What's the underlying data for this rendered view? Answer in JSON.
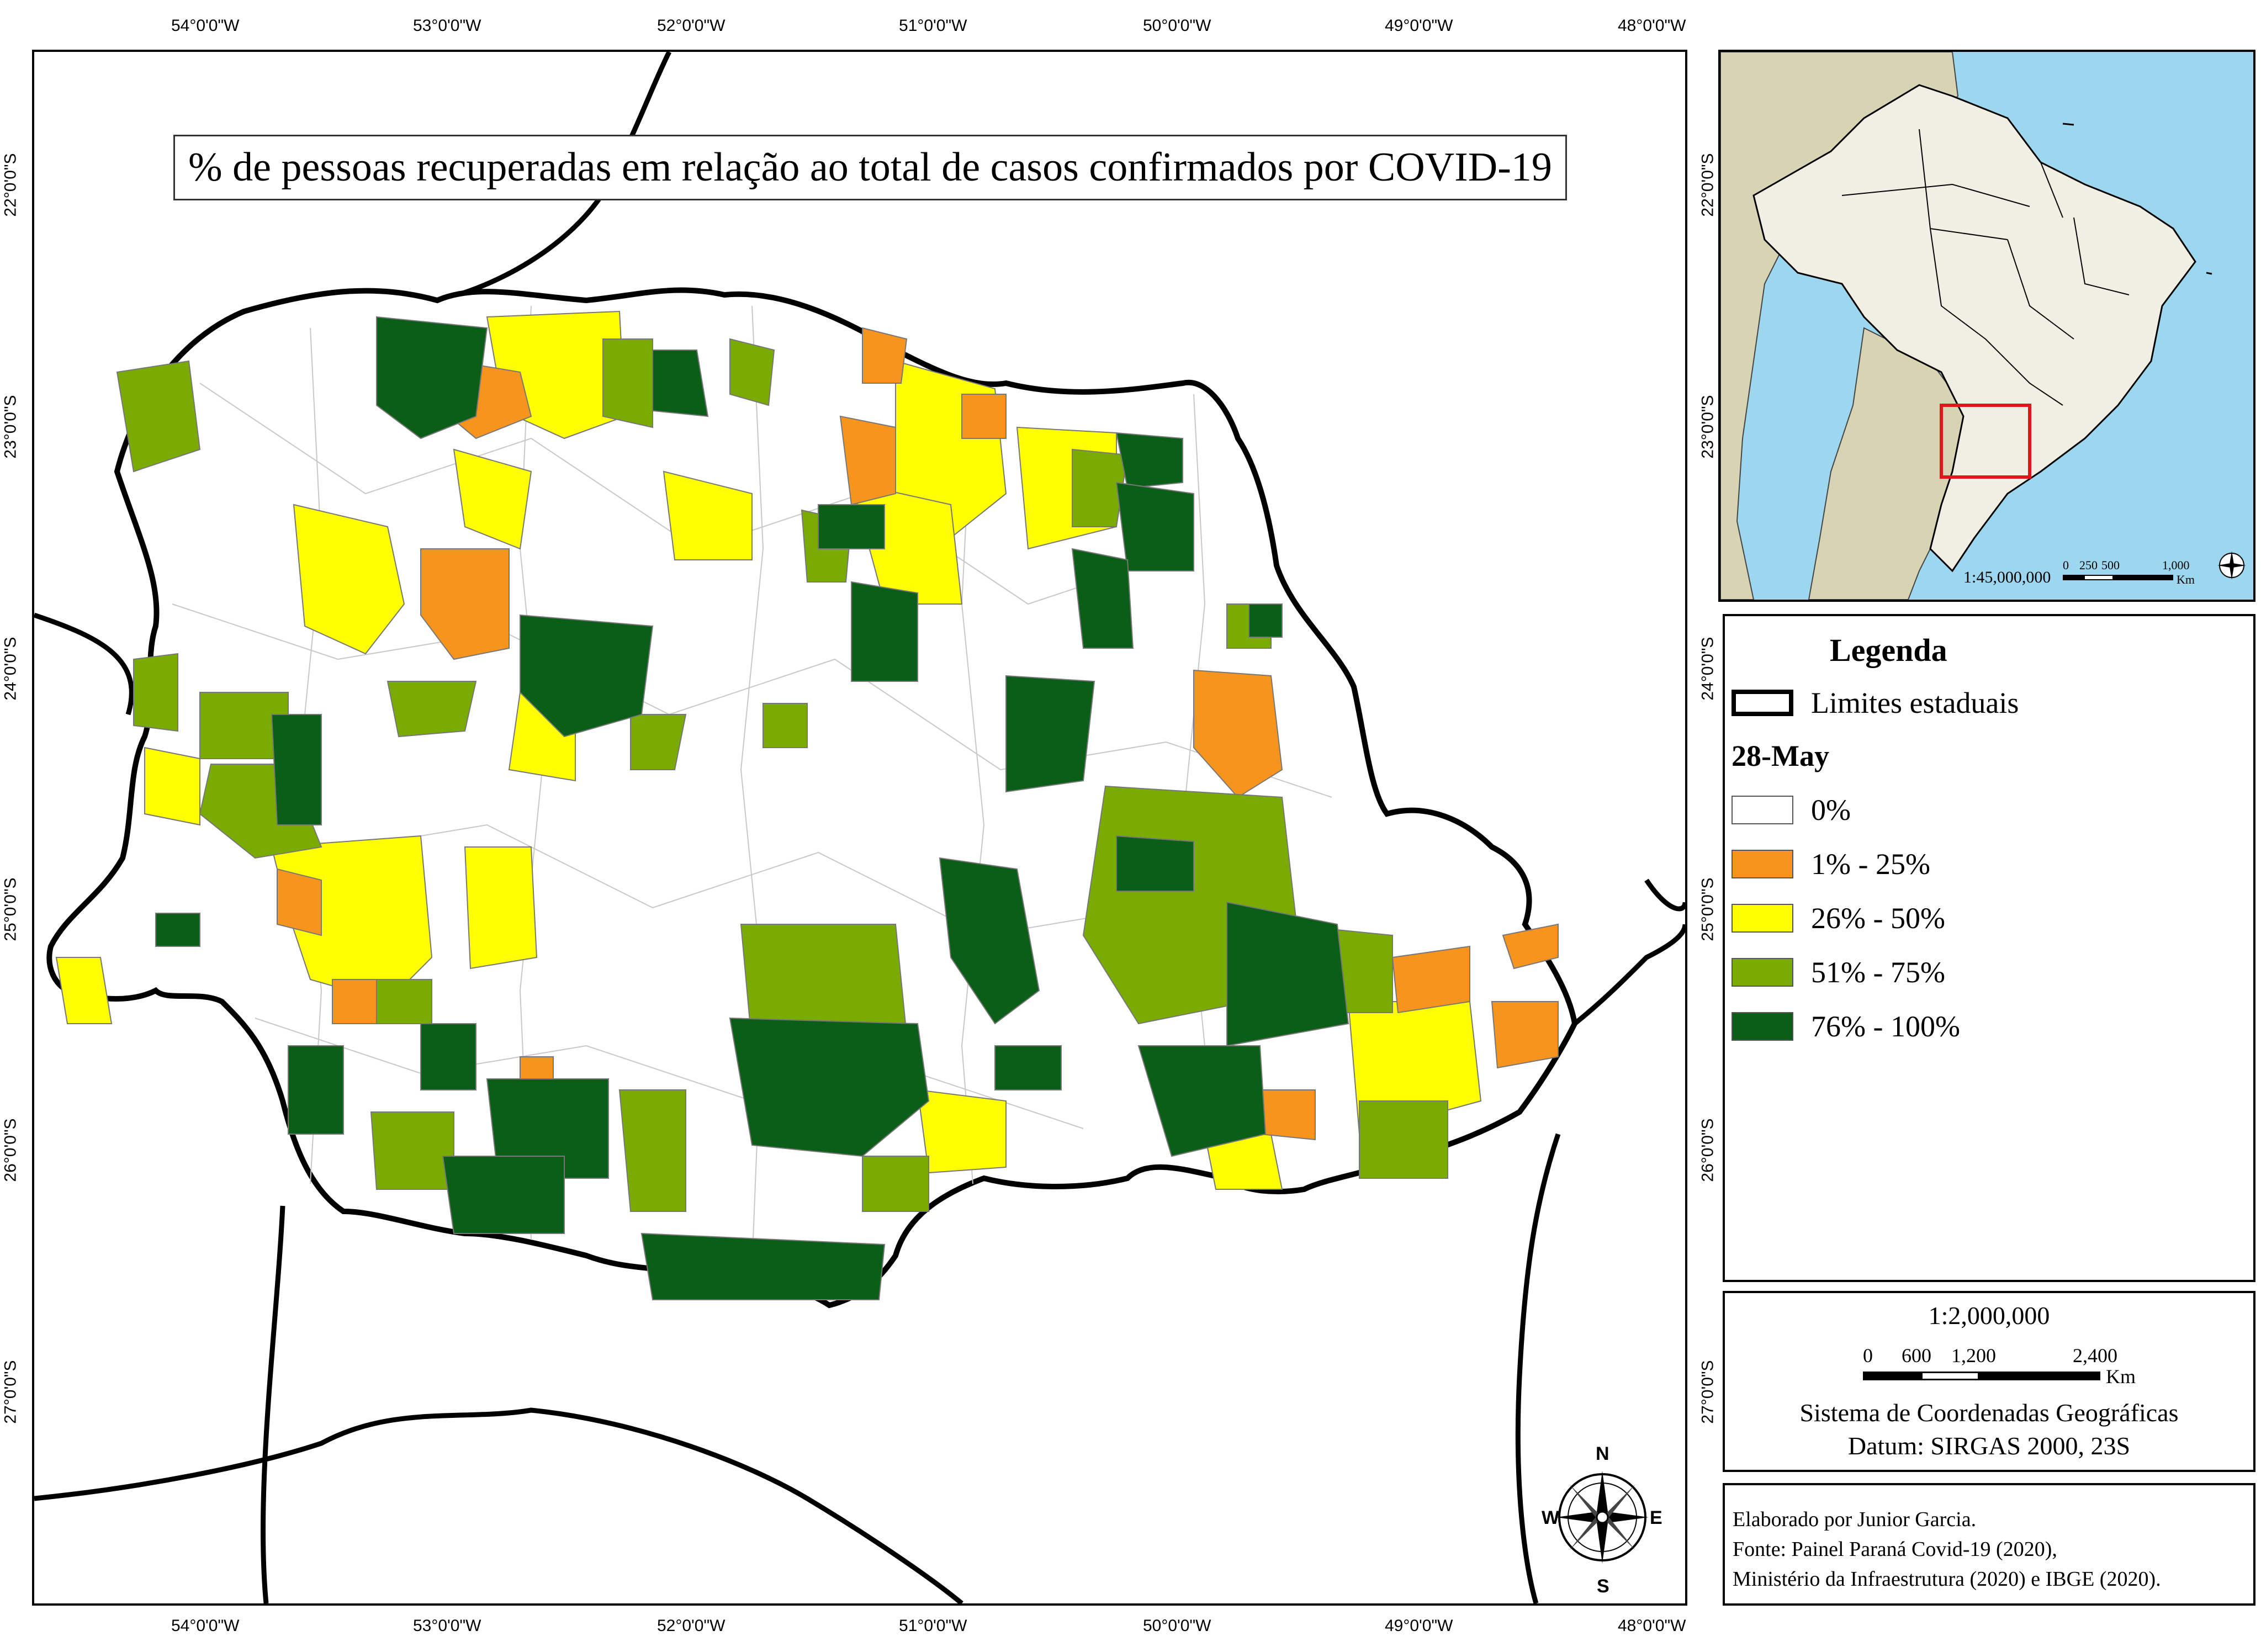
{
  "title": "% de pessoas recuperadas em relação ao total de casos confirmados por COVID-19",
  "longitude_labels": [
    "54°0'0\"W",
    "53°0'0\"W",
    "52°0'0\"W",
    "51°0'0\"W",
    "50°0'0\"W",
    "49°0'0\"W",
    "48°0'0\"W"
  ],
  "latitude_labels": [
    "22°0'0\"S",
    "23°0'0\"S",
    "24°0'0\"S",
    "25°0'0\"S",
    "26°0'0\"S",
    "27°0'0\"S"
  ],
  "legend": {
    "title": "Legenda",
    "boundary_label": "Limites estaduais",
    "date_label": "28-May",
    "classes": [
      {
        "label": "0%",
        "color": "#ffffff"
      },
      {
        "label": "1% - 25%",
        "color": "#f7941d"
      },
      {
        "label": "26% - 50%",
        "color": "#ffff00"
      },
      {
        "label": "51% - 75%",
        "color": "#7aab00"
      },
      {
        "label": "76% - 100%",
        "color": "#0b5e17"
      }
    ]
  },
  "scale": {
    "ratio": "1:2,000,000",
    "ticks": [
      "0",
      "600",
      "1,200",
      "2,400"
    ],
    "unit": "Km",
    "crs": "Sistema de Coordenadas Geográficas",
    "datum": "Datum: SIRGAS 2000, 23S"
  },
  "credits": [
    "Elaborado por Junior Garcia.",
    "Fonte: Painel Paraná Covid-19 (2020),",
    "Ministério da Infraestrutura (2020) e IBGE (2020)."
  ],
  "inset": {
    "scale_ratio": "1:45,000,000",
    "ticks": [
      "0",
      "250",
      "500",
      "1,000"
    ],
    "unit": "Km",
    "highlight_color": "#e0161b",
    "ocean_color": "#9cd7ef",
    "brazil_color": "#f1efe4",
    "neighbors_color": "#d8d4b3"
  },
  "compass": {
    "n": "N",
    "s": "S",
    "e": "E",
    "w": "W"
  }
}
